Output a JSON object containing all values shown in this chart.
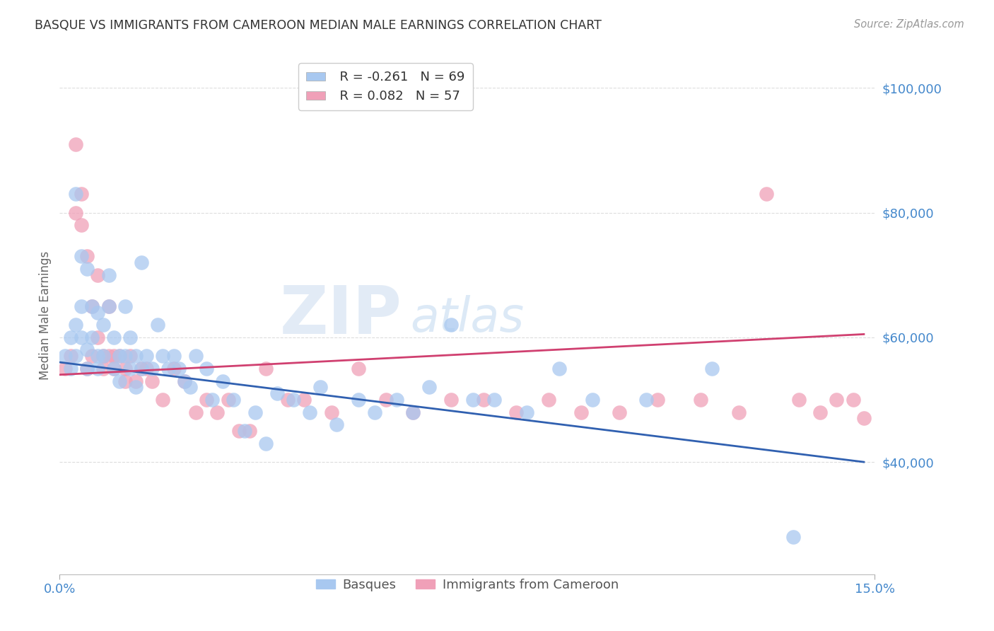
{
  "title": "BASQUE VS IMMIGRANTS FROM CAMEROON MEDIAN MALE EARNINGS CORRELATION CHART",
  "source": "Source: ZipAtlas.com",
  "ylabel": "Median Male Earnings",
  "xlim": [
    0.0,
    0.15
  ],
  "ylim": [
    22000,
    105000
  ],
  "yticks": [
    40000,
    60000,
    80000,
    100000
  ],
  "ytick_labels": [
    "$40,000",
    "$60,000",
    "$80,000",
    "$100,000"
  ],
  "xticks": [
    0.0,
    0.15
  ],
  "xtick_labels": [
    "0.0%",
    "15.0%"
  ],
  "watermark_zip": "ZIP",
  "watermark_atlas": "atlas",
  "blue_color": "#A8C8F0",
  "pink_color": "#F0A0B8",
  "blue_line_color": "#3060B0",
  "pink_line_color": "#D04070",
  "legend_blue_R": "R = -0.261",
  "legend_blue_N": "N = 69",
  "legend_pink_R": "R = 0.082",
  "legend_pink_N": "N = 57",
  "title_color": "#333333",
  "axis_label_color": "#666666",
  "tick_label_color": "#4488CC",
  "grid_color": "#DDDDDD",
  "blue_scatter_x": [
    0.001,
    0.002,
    0.002,
    0.003,
    0.003,
    0.003,
    0.004,
    0.004,
    0.004,
    0.005,
    0.005,
    0.005,
    0.006,
    0.006,
    0.007,
    0.007,
    0.007,
    0.008,
    0.008,
    0.009,
    0.009,
    0.01,
    0.01,
    0.011,
    0.011,
    0.012,
    0.012,
    0.013,
    0.013,
    0.014,
    0.014,
    0.015,
    0.015,
    0.016,
    0.017,
    0.018,
    0.019,
    0.02,
    0.021,
    0.022,
    0.023,
    0.024,
    0.025,
    0.027,
    0.028,
    0.03,
    0.032,
    0.034,
    0.036,
    0.038,
    0.04,
    0.043,
    0.046,
    0.048,
    0.051,
    0.055,
    0.058,
    0.062,
    0.065,
    0.068,
    0.072,
    0.076,
    0.08,
    0.086,
    0.092,
    0.098,
    0.108,
    0.12,
    0.135
  ],
  "blue_scatter_y": [
    57000,
    60000,
    55000,
    83000,
    62000,
    57000,
    73000,
    65000,
    60000,
    71000,
    58000,
    55000,
    65000,
    60000,
    64000,
    57000,
    55000,
    62000,
    57000,
    70000,
    65000,
    60000,
    55000,
    57000,
    53000,
    65000,
    57000,
    60000,
    55000,
    57000,
    52000,
    72000,
    55000,
    57000,
    55000,
    62000,
    57000,
    55000,
    57000,
    55000,
    53000,
    52000,
    57000,
    55000,
    50000,
    53000,
    50000,
    45000,
    48000,
    43000,
    51000,
    50000,
    48000,
    52000,
    46000,
    50000,
    48000,
    50000,
    48000,
    52000,
    62000,
    50000,
    50000,
    48000,
    55000,
    50000,
    50000,
    55000,
    28000
  ],
  "pink_scatter_x": [
    0.001,
    0.002,
    0.003,
    0.003,
    0.004,
    0.004,
    0.005,
    0.005,
    0.006,
    0.006,
    0.007,
    0.007,
    0.008,
    0.008,
    0.009,
    0.009,
    0.01,
    0.01,
    0.011,
    0.012,
    0.012,
    0.013,
    0.014,
    0.015,
    0.016,
    0.017,
    0.019,
    0.021,
    0.023,
    0.025,
    0.027,
    0.029,
    0.031,
    0.033,
    0.035,
    0.038,
    0.042,
    0.045,
    0.05,
    0.055,
    0.06,
    0.065,
    0.072,
    0.078,
    0.084,
    0.09,
    0.096,
    0.103,
    0.11,
    0.118,
    0.125,
    0.13,
    0.136,
    0.14,
    0.143,
    0.146,
    0.148
  ],
  "pink_scatter_y": [
    55000,
    57000,
    91000,
    80000,
    83000,
    78000,
    73000,
    55000,
    65000,
    57000,
    70000,
    60000,
    57000,
    55000,
    65000,
    57000,
    57000,
    55000,
    57000,
    55000,
    53000,
    57000,
    53000,
    55000,
    55000,
    53000,
    50000,
    55000,
    53000,
    48000,
    50000,
    48000,
    50000,
    45000,
    45000,
    55000,
    50000,
    50000,
    48000,
    55000,
    50000,
    48000,
    50000,
    50000,
    48000,
    50000,
    48000,
    48000,
    50000,
    50000,
    48000,
    83000,
    50000,
    48000,
    50000,
    50000,
    47000
  ],
  "blue_line_x": [
    0.0,
    0.148
  ],
  "blue_line_y": [
    56000,
    40000
  ],
  "pink_line_x": [
    0.0,
    0.148
  ],
  "pink_line_y": [
    54000,
    60500
  ]
}
